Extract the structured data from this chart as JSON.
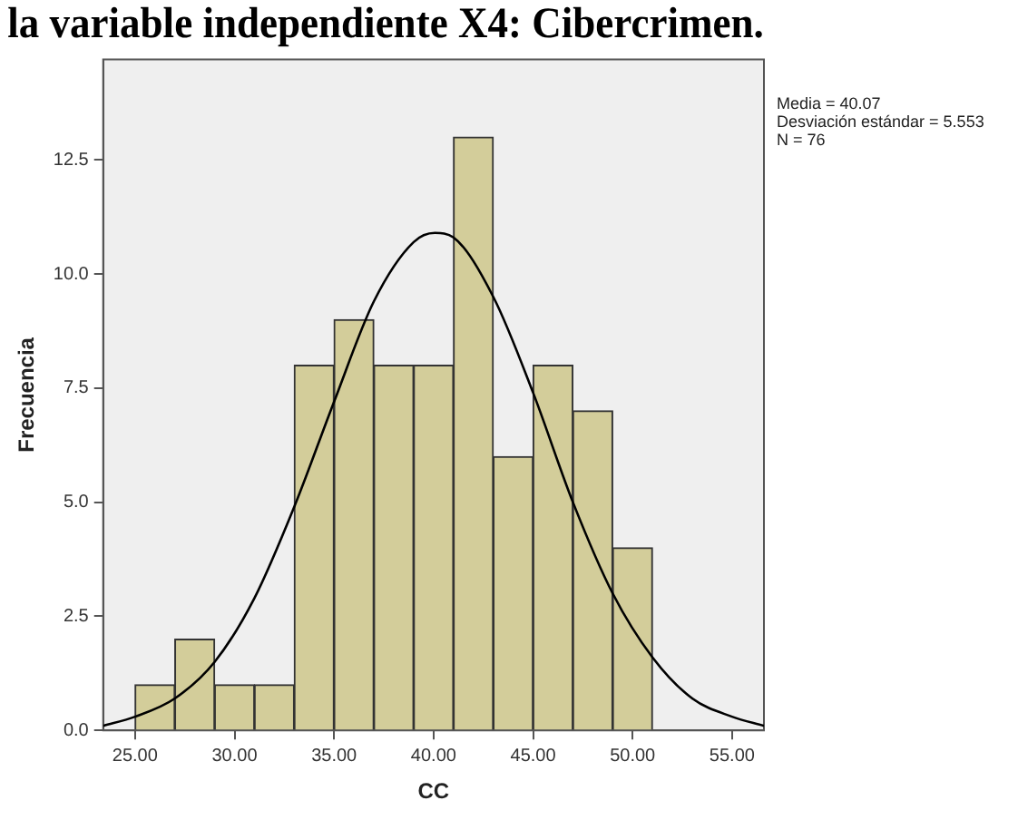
{
  "chart_data": {
    "type": "histogram",
    "title": "la variable independiente X4: Cibercrimen.",
    "xlabel": "CC",
    "ylabel": "Frecuencia",
    "bins": [
      25,
      27,
      29,
      31,
      33,
      35,
      37,
      39,
      41,
      43,
      45,
      47,
      49,
      51
    ],
    "values": [
      1,
      2,
      1,
      1,
      8,
      9,
      8,
      8,
      13,
      6,
      8,
      7,
      4
    ],
    "color": "#d3cd9a",
    "series": [
      {
        "type": "line",
        "color": "#000000",
        "x": [
          23.4,
          25,
          27,
          29,
          31,
          33,
          35,
          37,
          39,
          40.07,
          41,
          43,
          45,
          47,
          49,
          51,
          53,
          55,
          56.6
        ],
        "values": [
          0.1,
          0.3,
          0.7,
          1.5,
          2.9,
          4.9,
          7.2,
          9.4,
          10.7,
          10.9,
          10.8,
          9.5,
          7.4,
          5.0,
          3.0,
          1.6,
          0.7,
          0.3,
          0.1
        ]
      }
    ],
    "xlim": [
      23.4,
      56.6
    ],
    "xticks": [
      {
        "value": 25,
        "label": "25.00"
      },
      {
        "value": 30,
        "label": "30.00"
      },
      {
        "value": 35,
        "label": "35.00"
      },
      {
        "value": 40,
        "label": "40.00"
      },
      {
        "value": 45,
        "label": "45.00"
      },
      {
        "value": 50,
        "label": "50.00"
      },
      {
        "value": 55,
        "label": "55.00"
      }
    ],
    "ylim": [
      0,
      14.7
    ],
    "yticks": [
      {
        "value": 0,
        "label": "0.0"
      },
      {
        "value": 2.5,
        "label": "2.5"
      },
      {
        "value": 5,
        "label": "5.0"
      },
      {
        "value": 7.5,
        "label": "7.5"
      },
      {
        "value": 10,
        "label": "10.0"
      },
      {
        "value": 12.5,
        "label": "12.5"
      }
    ],
    "annotations": [
      "Media = 40.07",
      "Desviación estándar = 5.553",
      "N = 76"
    ],
    "grid": false,
    "legend": false
  }
}
